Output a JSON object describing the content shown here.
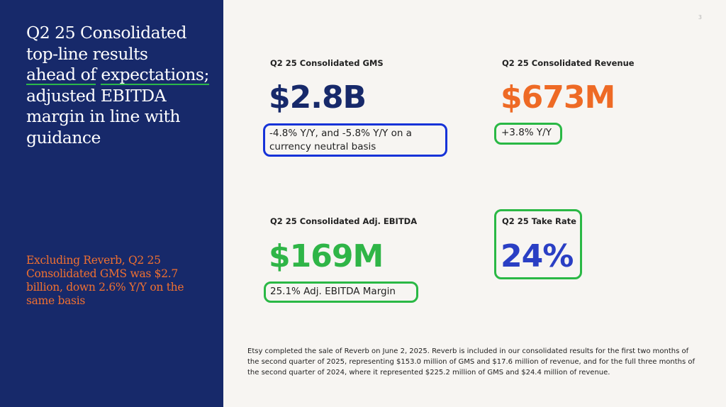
{
  "slide": {
    "page_number": "3",
    "headline": {
      "part1": "Q2 25 Consolidated top-line results",
      "highlight1": "ahead of",
      "highlight2": "expectations;",
      "part2": "adjusted EBITDA margin in line with guidance"
    },
    "subnote": "Excluding Reverb, Q2 25 Consolidated GMS was $2.7 billion, down 2.6% Y/Y on the same basis",
    "colors": {
      "panel": "#17296a",
      "navy_value": "#17296a",
      "orange_value": "#ee6a25",
      "green_value": "#2fb547",
      "blue_value": "#2a3fc4",
      "annotation_blue": "#1633d8",
      "annotation_green": "#2ab845"
    }
  },
  "metrics": {
    "gms": {
      "label": "Q2 25 Consolidated GMS",
      "value": "$2.8B",
      "note": "-4.8% Y/Y, and -5.8% Y/Y on a currency neutral basis"
    },
    "revenue": {
      "label": "Q2 25 Consolidated Revenue",
      "value": "$673M",
      "note": "+3.8% Y/Y"
    },
    "ebitda": {
      "label": "Q2 25 Consolidated Adj. EBITDA",
      "value": "$169M",
      "note": "25.1% Adj. EBITDA Margin"
    },
    "take_rate": {
      "label": "Q2 25 Take Rate",
      "value": "24%"
    }
  },
  "footnote": "Etsy completed the sale of Reverb on June 2, 2025. Reverb is included in our consolidated results for the first two months of the second quarter of 2025, representing $153.0 million of GMS and $17.6 million of revenue, and for the full three months of the second quarter of 2024, where it represented $225.2 million of GMS and $24.4 million of revenue."
}
